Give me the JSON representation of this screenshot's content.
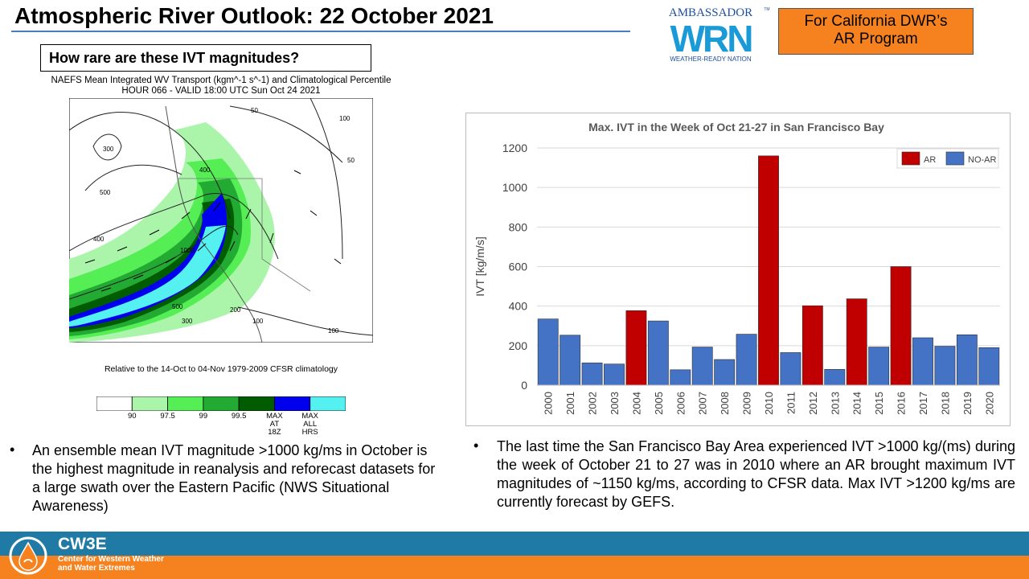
{
  "header": {
    "title": "Atmospheric River Outlook: 22 October 2021",
    "program_box": [
      "For California DWR’s",
      "AR Program"
    ]
  },
  "logo": {
    "top_text": "AMBASSADOR",
    "tm": "TM",
    "mark": "WRN",
    "bottom_text": "WEATHER-READY NATION"
  },
  "question": "How rare are these IVT magnitudes?",
  "map": {
    "title_line1": "NAEFS Mean Integrated WV Transport (kgm^-1 s^-1) and Climatological Percentile",
    "title_line2": "HOUR 066 - VALID 18:00 UTC Sun Oct 24 2021",
    "footnote": "Relative to the 14-Oct to 04-Nov 1979-2009 CFSR climatology",
    "contour_labels": [
      "50",
      "100",
      "300",
      "500",
      "400",
      "1000",
      "500",
      "300",
      "200",
      "100",
      "100",
      "50",
      "400"
    ],
    "colorbar": {
      "colors": [
        "#ffffff",
        "#aaf5aa",
        "#55ee55",
        "#22aa33",
        "#005c00",
        "#0000ee",
        "#55f0f0"
      ],
      "labels": [
        "90",
        "97.5",
        "99",
        "99.5",
        "MAX AT 18Z",
        "MAX ALL HRS"
      ]
    }
  },
  "bullets": {
    "left": "An ensemble mean IVT magnitude  >1000 kg/ms  in October is the highest magnitude  in reanalysis and reforecast datasets for a large swath over the Eastern Pacific (NWS Situational Awareness)",
    "right": "The last time the San Francisco Bay Area experienced IVT >1000 kg/(ms)  during the week of October 21 to 27 was in 2010 where an AR brought maximum  IVT magnitudes  of ~1150 kg/ms, according to CFSR data. Max IVT >1200 kg/ms are currently forecast by GEFS."
  },
  "chart_data": {
    "type": "bar",
    "title": "Max. IVT in the Week of Oct 21-27 in San Francisco Bay",
    "ylabel": "IVT [kg/m/s]",
    "xlabel": "",
    "ylim": [
      0,
      1200
    ],
    "yticks": [
      0,
      200,
      400,
      600,
      800,
      1000,
      1200
    ],
    "categories": [
      "2000",
      "2001",
      "2002",
      "2003",
      "2004",
      "2005",
      "2006",
      "2007",
      "2008",
      "2009",
      "2010",
      "2011",
      "2012",
      "2013",
      "2014",
      "2015",
      "2016",
      "2017",
      "2018",
      "2019",
      "2020"
    ],
    "values": [
      335,
      253,
      113,
      107,
      377,
      325,
      78,
      193,
      130,
      258,
      1160,
      165,
      402,
      80,
      437,
      193,
      600,
      240,
      197,
      255,
      190
    ],
    "classes": [
      "NO-AR",
      "NO-AR",
      "NO-AR",
      "NO-AR",
      "AR",
      "NO-AR",
      "NO-AR",
      "NO-AR",
      "NO-AR",
      "NO-AR",
      "AR",
      "NO-AR",
      "AR",
      "NO-AR",
      "AR",
      "NO-AR",
      "AR",
      "NO-AR",
      "NO-AR",
      "NO-AR",
      "NO-AR"
    ],
    "legend": [
      {
        "name": "AR",
        "color": "#c00000"
      },
      {
        "name": "NO-AR",
        "color": "#4472c4"
      }
    ],
    "legend_position": "top-right",
    "grid": true
  },
  "footer": {
    "name": "CW3E",
    "sub_line1": "Center for Western Weather",
    "sub_line2": "and Water Extremes"
  }
}
